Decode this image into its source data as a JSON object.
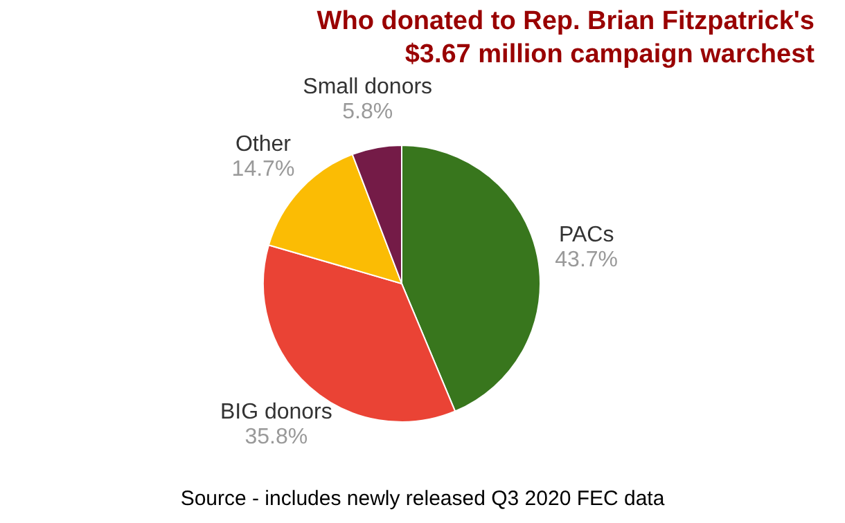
{
  "chart_data": {
    "type": "pie",
    "title": "Who donated to Rep. Brian Fitzpatrick's $3.67 million campaign warchest",
    "categories": [
      "PACs",
      "BIG donors",
      "Other",
      "Small donors"
    ],
    "values": [
      43.7,
      35.8,
      14.7,
      5.8
    ],
    "value_labels": [
      "43.7%",
      "35.8%",
      "14.7%",
      "5.8%"
    ],
    "colors": [
      "#38761d",
      "#ea4335",
      "#fbbc04",
      "#741b47"
    ],
    "annotations": [
      "Source - includes newly released Q3 2020 FEC data"
    ]
  }
}
